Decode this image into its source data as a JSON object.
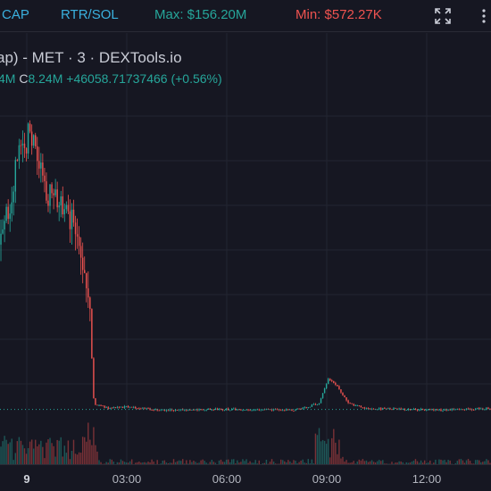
{
  "toolbar": {
    "mcap_label": "CAP",
    "pair_label": "RTR/SOL",
    "max_label": "Max: $156.20M",
    "min_label": "Min: $572.27K"
  },
  "legend": {
    "title": "ap) - MET · 3 · DEXTools.io",
    "low_fragment": "4M",
    "close_label": "C",
    "close_value": "8.24M",
    "change": "+46058.71737466 (+0.56%)"
  },
  "colors": {
    "background": "#161722",
    "up": "#26a69a",
    "down": "#ef5350",
    "accent": "#3ab0de",
    "grid": "#232531"
  },
  "icons": {
    "fullscreen": "fullscreen-icon",
    "more": "more-icon"
  },
  "chart_data": {
    "type": "candlestick",
    "x_ticks": [
      "9",
      "03:00",
      "06:00",
      "09:00",
      "12:00"
    ],
    "bold_tick": "9",
    "price_segments": [
      {
        "t": 0.0,
        "v": 0.55
      },
      {
        "t": 0.04,
        "v": 0.85
      },
      {
        "t": 0.06,
        "v": 0.9
      },
      {
        "t": 0.09,
        "v": 0.72
      },
      {
        "t": 0.12,
        "v": 0.68
      },
      {
        "t": 0.16,
        "v": 0.58
      },
      {
        "t": 0.18,
        "v": 0.4
      },
      {
        "t": 0.19,
        "v": 0.05
      },
      {
        "t": 0.22,
        "v": 0.035
      },
      {
        "t": 0.26,
        "v": 0.04
      },
      {
        "t": 0.32,
        "v": 0.03
      },
      {
        "t": 0.45,
        "v": 0.032
      },
      {
        "t": 0.6,
        "v": 0.03
      },
      {
        "t": 0.65,
        "v": 0.05
      },
      {
        "t": 0.67,
        "v": 0.13
      },
      {
        "t": 0.69,
        "v": 0.1
      },
      {
        "t": 0.71,
        "v": 0.05
      },
      {
        "t": 0.75,
        "v": 0.035
      },
      {
        "t": 0.9,
        "v": 0.03
      },
      {
        "t": 1.0,
        "v": 0.035
      }
    ],
    "current_level": 0.032,
    "grid": true
  }
}
